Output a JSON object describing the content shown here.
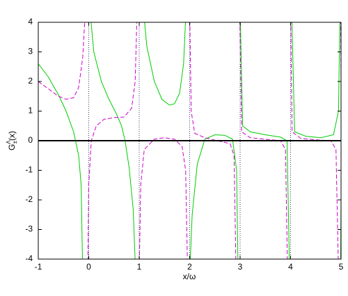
{
  "chart_data": {
    "type": "line",
    "xlabel": "x/ω",
    "ylabel": {
      "base": "G",
      "sup": "Λ",
      "sub": "±",
      "tail": "(x)"
    },
    "xlim": [
      -1,
      5
    ],
    "ylim": [
      -4,
      4
    ],
    "xticks": [
      -1,
      0,
      1,
      2,
      3,
      4,
      5
    ],
    "yticks": [
      -4,
      -3,
      -2,
      -1,
      0,
      1,
      2,
      3,
      4
    ],
    "hline": 0,
    "hline_color": "#000000",
    "vlines": [
      0,
      1,
      2,
      3,
      4,
      5
    ],
    "vline_color": "#333366",
    "series": [
      {
        "color": "#00cc00",
        "dash": "solid",
        "x": [
          -1,
          -0.8,
          -0.6,
          -0.45,
          -0.3,
          -0.2,
          -0.15,
          -0.12,
          -0.1,
          0.02,
          0.1,
          0.25,
          0.4,
          0.55,
          0.65,
          0.72,
          0.8,
          0.88,
          0.93,
          1.0,
          1.08,
          1.15,
          1.3,
          1.45,
          1.6,
          1.7,
          1.8,
          1.88,
          1.93,
          1.97,
          2.0,
          2.05,
          2.15,
          2.3,
          2.5,
          2.7,
          2.85,
          2.93,
          2.96,
          2.98,
          3.0,
          3.05,
          3.2,
          3.5,
          3.8,
          3.93,
          3.98,
          4.0,
          4.02,
          4.08,
          4.3,
          4.6,
          4.85,
          4.95,
          4.98,
          4.985,
          4.99,
          5.0
        ],
        "values": [
          2.6,
          2.15,
          1.55,
          1.0,
          0.3,
          -0.5,
          -1.5,
          -4.5,
          null,
          4.5,
          3.0,
          2.0,
          1.4,
          0.9,
          0.5,
          0,
          -0.9,
          -2.3,
          -4.5,
          null,
          4.5,
          3.2,
          2.0,
          1.4,
          1.2,
          1.25,
          1.6,
          2.6,
          4.5,
          null,
          -4.5,
          -2.5,
          -0.8,
          0.05,
          0.2,
          0.18,
          0.05,
          -1.0,
          -4.5,
          null,
          4.5,
          0.5,
          0.3,
          0.2,
          0.12,
          0.0,
          -4.5,
          null,
          4.5,
          0.3,
          0.15,
          0.1,
          0.2,
          1.0,
          4.5,
          null,
          -4.5,
          -2.0
        ]
      },
      {
        "color": "#cc00cc",
        "dash": "dashed",
        "x": [
          -1,
          -0.8,
          -0.6,
          -0.45,
          -0.3,
          -0.2,
          -0.12,
          -0.08,
          -0.06,
          -0.04,
          -0.02,
          0.0,
          0.05,
          0.15,
          0.3,
          0.5,
          0.7,
          0.85,
          0.92,
          0.96,
          0.98,
          1.0,
          1.03,
          1.1,
          1.3,
          1.5,
          1.7,
          1.85,
          1.92,
          1.96,
          1.98,
          2.0,
          2.03,
          2.1,
          2.3,
          2.6,
          2.8,
          2.88,
          2.92,
          2.96,
          2.99,
          3.03,
          3.2,
          3.5,
          3.8,
          3.9,
          3.94,
          3.97,
          4.0,
          4.03,
          4.2,
          4.5,
          4.8,
          4.9,
          4.95,
          4.97,
          4.99,
          5.0
        ],
        "values": [
          2.0,
          1.75,
          1.5,
          1.4,
          1.45,
          1.8,
          2.8,
          4.0,
          4.5,
          null,
          -4.5,
          -1.5,
          0.0,
          0.5,
          0.72,
          0.78,
          0.8,
          1.1,
          2.0,
          4.5,
          null,
          -4.5,
          -1.5,
          -0.3,
          0.05,
          0.1,
          0.05,
          -0.2,
          -1.0,
          -4.5,
          null,
          4.5,
          1.0,
          0.25,
          0.1,
          -0.02,
          -0.1,
          -0.5,
          -4.5,
          null,
          4.5,
          0.3,
          0.1,
          0.05,
          0.0,
          -0.3,
          -4.5,
          null,
          4.5,
          0.3,
          0.08,
          0.03,
          0.0,
          -0.3,
          -4.5,
          null,
          4.5,
          2.0
        ]
      }
    ]
  }
}
